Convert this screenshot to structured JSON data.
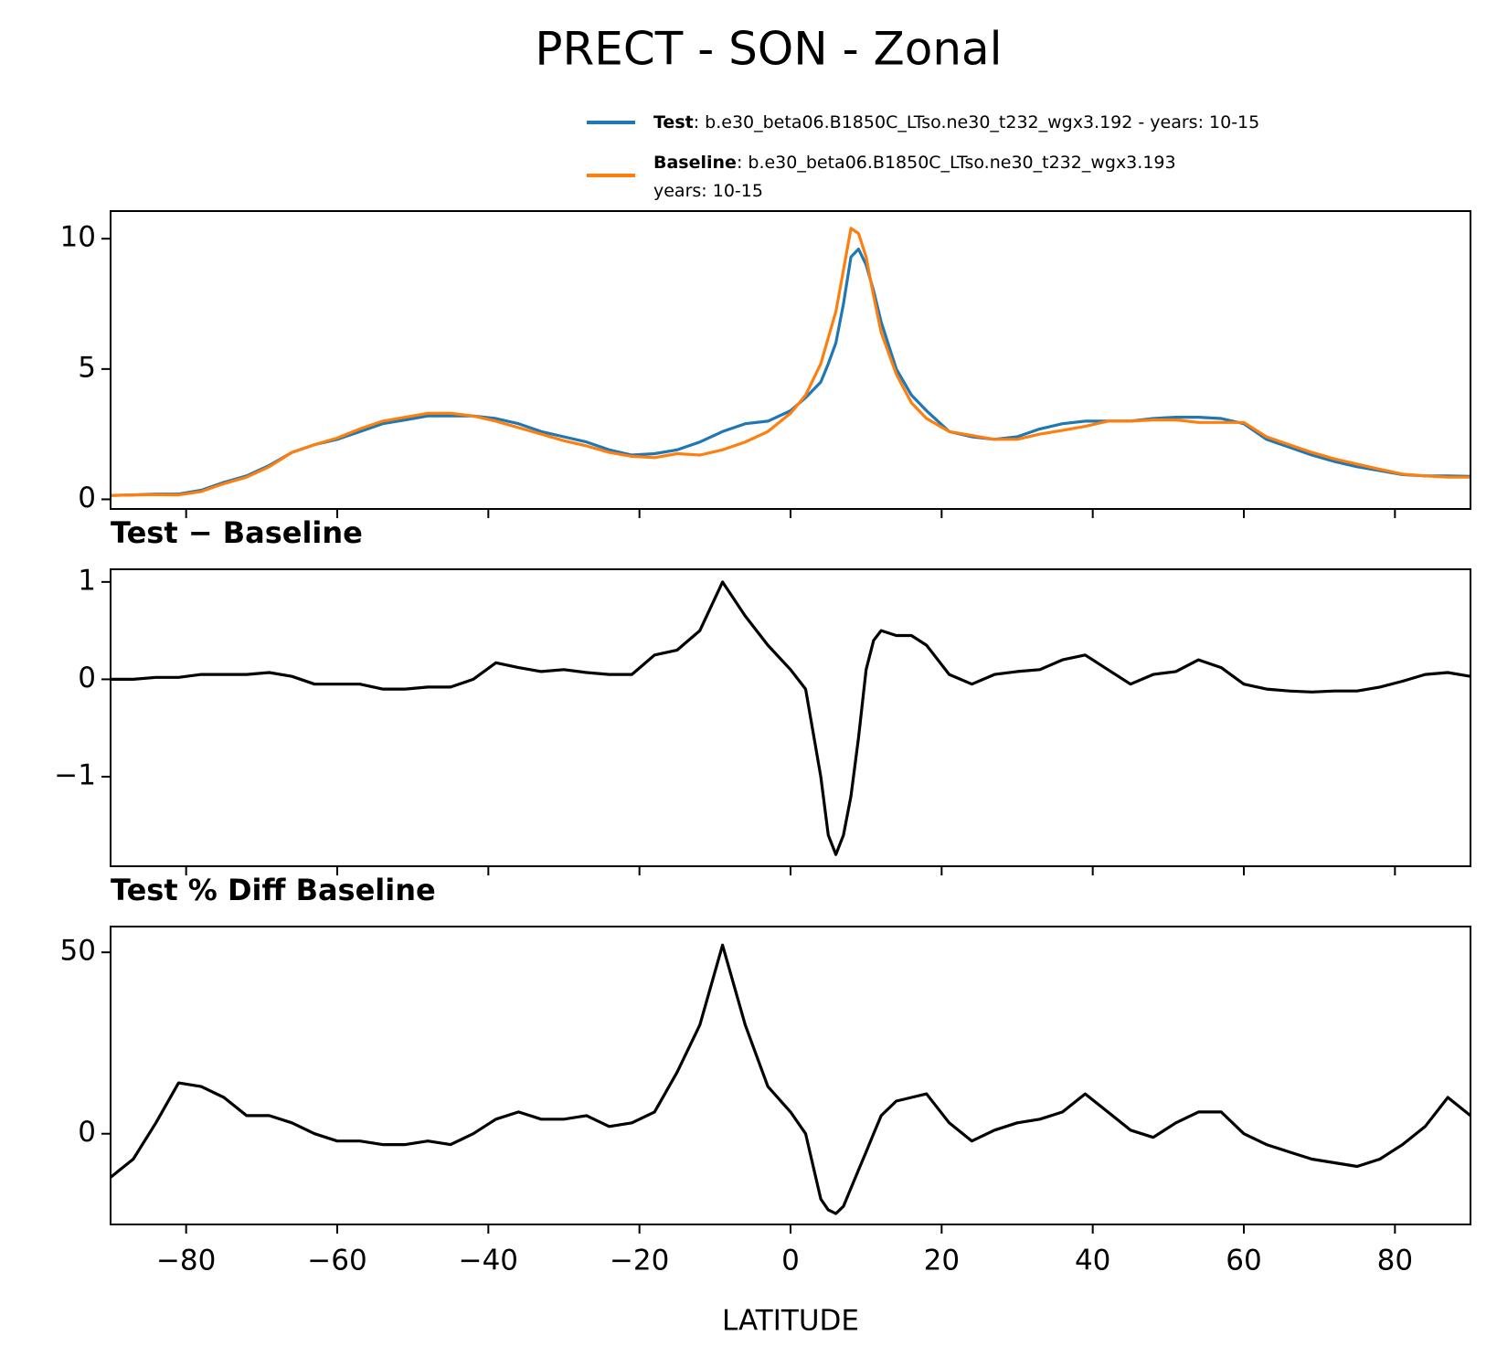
{
  "suptitle": "PRECT - SON - Zonal",
  "chart_data": [
    {
      "type": "line",
      "x": [
        -90,
        -87,
        -84,
        -81,
        -78,
        -75,
        -72,
        -69,
        -66,
        -63,
        -60,
        -57,
        -54,
        -51,
        -48,
        -45,
        -42,
        -39,
        -36,
        -33,
        -30,
        -27,
        -24,
        -21,
        -18,
        -15,
        -12,
        -9,
        -6,
        -3,
        0,
        2,
        4,
        5,
        6,
        7,
        8,
        9,
        10,
        11,
        12,
        14,
        16,
        18,
        21,
        24,
        27,
        30,
        33,
        36,
        39,
        42,
        45,
        48,
        51,
        54,
        57,
        60,
        63,
        66,
        69,
        72,
        75,
        78,
        81,
        84,
        87,
        90
      ],
      "series": [
        {
          "name": "Test",
          "case": [
            ": b.e30_beta06.B1850C_LTso.ne30_t232_wgx3.192 - years: 10-15"
          ],
          "color": "#1f77b4",
          "values": [
            0.15,
            0.17,
            0.2,
            0.2,
            0.35,
            0.65,
            0.9,
            1.3,
            1.8,
            2.1,
            2.3,
            2.6,
            2.9,
            3.05,
            3.2,
            3.2,
            3.2,
            3.1,
            2.9,
            2.6,
            2.4,
            2.2,
            1.9,
            1.7,
            1.75,
            1.9,
            2.2,
            2.6,
            2.9,
            3.0,
            3.4,
            3.9,
            4.5,
            5.2,
            6.0,
            7.5,
            9.3,
            9.6,
            9.0,
            8.0,
            6.8,
            5.0,
            4.0,
            3.4,
            2.6,
            2.4,
            2.3,
            2.4,
            2.7,
            2.9,
            3.0,
            3.0,
            3.0,
            3.1,
            3.15,
            3.15,
            3.1,
            2.9,
            2.3,
            2.0,
            1.7,
            1.45,
            1.25,
            1.1,
            0.95,
            0.9,
            0.9,
            0.88
          ]
        },
        {
          "name": "Baseline",
          "case": [
            ": b.e30_beta06.B1850C_LTso.ne30_t232_wgx3.193",
            "years: 10-15"
          ],
          "color": "#ff7f0e",
          "values": [
            0.15,
            0.17,
            0.18,
            0.17,
            0.3,
            0.6,
            0.85,
            1.25,
            1.8,
            2.1,
            2.35,
            2.7,
            3.0,
            3.15,
            3.3,
            3.3,
            3.2,
            3.0,
            2.75,
            2.5,
            2.25,
            2.05,
            1.8,
            1.65,
            1.6,
            1.75,
            1.7,
            1.9,
            2.2,
            2.6,
            3.3,
            4.0,
            5.2,
            6.2,
            7.2,
            8.8,
            10.4,
            10.2,
            9.3,
            7.8,
            6.4,
            4.8,
            3.7,
            3.1,
            2.6,
            2.45,
            2.3,
            2.3,
            2.5,
            2.65,
            2.8,
            3.0,
            3.0,
            3.05,
            3.05,
            2.95,
            2.95,
            2.95,
            2.4,
            2.1,
            1.8,
            1.55,
            1.35,
            1.15,
            0.97,
            0.9,
            0.85,
            0.85
          ]
        }
      ],
      "xlim": [
        -90,
        90
      ],
      "ylim": [
        -0.37,
        11.06
      ],
      "yticks": [
        0,
        5,
        10
      ]
    },
    {
      "type": "line",
      "title": "Test − Baseline",
      "series": [
        {
          "color": "#000000",
          "values": [
            0,
            0,
            0.02,
            0.02,
            0.05,
            0.05,
            0.05,
            0.07,
            0.03,
            -0.05,
            -0.05,
            -0.05,
            -0.1,
            -0.1,
            -0.08,
            -0.08,
            0,
            0.17,
            0.12,
            0.08,
            0.1,
            0.07,
            0.05,
            0.05,
            0.25,
            0.3,
            0.5,
            1.0,
            0.65,
            0.35,
            0.1,
            -0.1,
            -1.0,
            -1.6,
            -1.8,
            -1.6,
            -1.2,
            -0.6,
            0.1,
            0.4,
            0.5,
            0.45,
            0.45,
            0.35,
            0.05,
            -0.05,
            0.05,
            0.08,
            0.1,
            0.2,
            0.25,
            0.1,
            -0.05,
            0.05,
            0.08,
            0.2,
            0.12,
            -0.05,
            -0.1,
            -0.12,
            -0.13,
            -0.12,
            -0.12,
            -0.08,
            -0.02,
            0.05,
            0.07,
            0.03
          ]
        }
      ],
      "xlim": [
        -90,
        90
      ],
      "ylim": [
        -1.92,
        1.13
      ],
      "yticks": [
        {
          "value": -1,
          "label": "−1"
        },
        0,
        1
      ]
    },
    {
      "type": "line",
      "title": "Test % Diff Baseline",
      "xlabel": "LATITUDE",
      "series": [
        {
          "color": "#000000",
          "values": [
            -12,
            -7,
            3,
            14,
            13,
            10,
            5,
            5,
            3,
            0,
            -2,
            -2,
            -3,
            -3,
            -2,
            -3,
            0,
            4,
            6,
            4,
            4,
            5,
            2,
            3,
            6,
            17,
            30,
            52,
            30,
            13,
            6,
            0,
            -18,
            -21,
            -22,
            -20,
            -15,
            -10,
            -5,
            0,
            5,
            9,
            10,
            11,
            3,
            -2,
            1,
            3,
            4,
            6,
            11,
            6,
            1,
            -1,
            3,
            6,
            6,
            0,
            -3,
            -5,
            -7,
            -8,
            -9,
            -7,
            -3,
            2,
            10,
            5
          ]
        }
      ],
      "xlim": [
        -90,
        90
      ],
      "ylim": [
        -25,
        57.1
      ],
      "yticks": [
        0,
        50
      ],
      "xticks": [
        {
          "value": -80,
          "label": "−80"
        },
        {
          "value": -60,
          "label": "−60"
        },
        {
          "value": -40,
          "label": "−40"
        },
        {
          "value": -20,
          "label": "−20"
        },
        0,
        20,
        40,
        60,
        80
      ]
    }
  ]
}
